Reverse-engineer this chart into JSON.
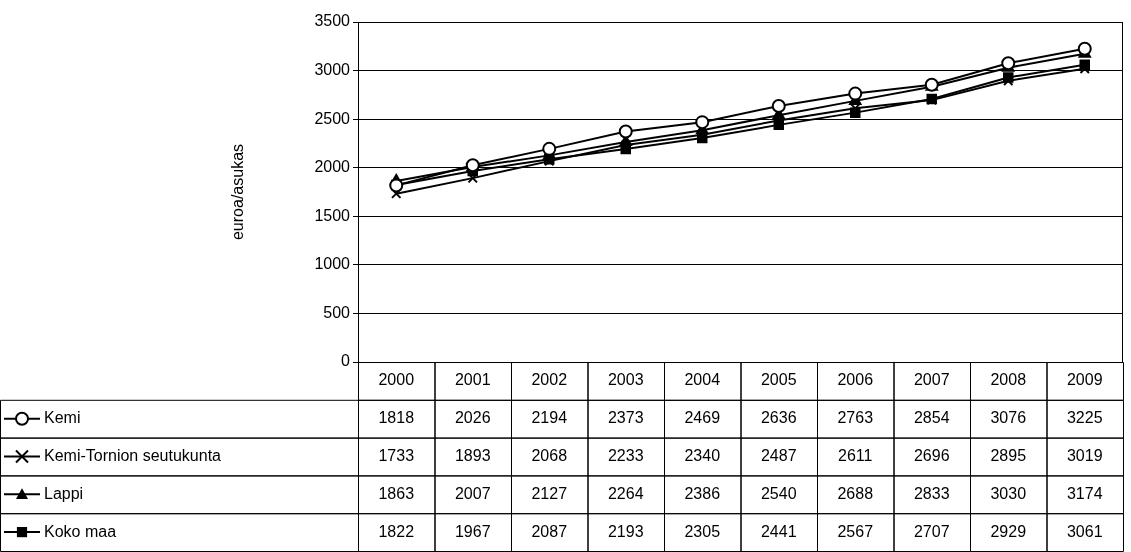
{
  "chart_data": {
    "type": "line",
    "ylabel": "euroa/asukas",
    "categories": [
      "2000",
      "2001",
      "2002",
      "2003",
      "2004",
      "2005",
      "2006",
      "2007",
      "2008",
      "2009"
    ],
    "series": [
      {
        "name": "Kemi",
        "color": "#000000",
        "marker": "circle",
        "values": [
          1818,
          2026,
          2194,
          2373,
          2469,
          2636,
          2763,
          2854,
          3076,
          3225
        ]
      },
      {
        "name": "Kemi-Tornion seutukunta",
        "color": "#000000",
        "marker": "cross",
        "values": [
          1733,
          1893,
          2068,
          2233,
          2340,
          2487,
          2611,
          2696,
          2895,
          3019
        ]
      },
      {
        "name": "Lappi",
        "color": "#000000",
        "marker": "triangle",
        "values": [
          1863,
          2007,
          2127,
          2264,
          2386,
          2540,
          2688,
          2833,
          3030,
          3174
        ]
      },
      {
        "name": "Koko maa",
        "color": "#000000",
        "marker": "square",
        "values": [
          1822,
          1967,
          2087,
          2193,
          2305,
          2441,
          2567,
          2707,
          2929,
          3061
        ]
      }
    ],
    "ylim": [
      0,
      3500
    ],
    "yticks": [
      0,
      500,
      1000,
      1500,
      2000,
      2500,
      3000,
      3500
    ],
    "grid": "y",
    "legend": "bottom",
    "data_labels": true,
    "line_style": "solid"
  }
}
